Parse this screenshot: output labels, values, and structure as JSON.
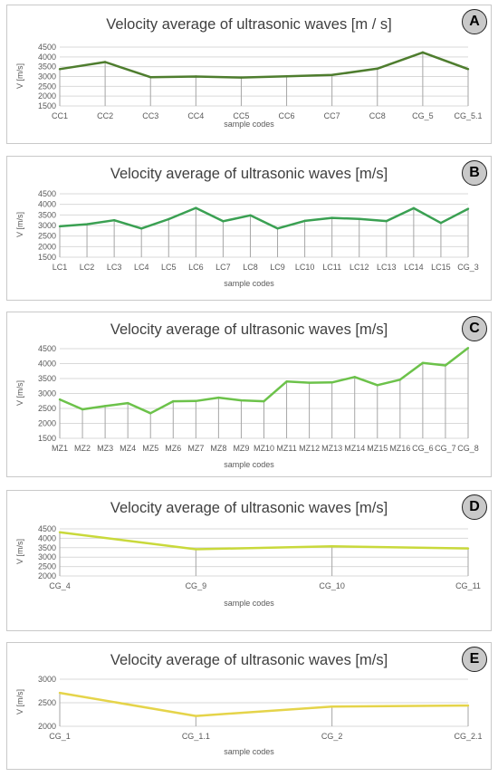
{
  "chart_data": [
    {
      "type": "line",
      "badge": "A",
      "title": "Velocity average of ultrasonic waves [m / s]",
      "xlabel": "sample codes",
      "ylabel": "V [m/s]",
      "categories": [
        "CC1",
        "CC2",
        "CC3",
        "CC4",
        "CC5",
        "CC6",
        "CC7",
        "CC8",
        "CG_5",
        "CG_5.1"
      ],
      "values": [
        3380,
        3740,
        2970,
        3000,
        2950,
        3010,
        3080,
        3400,
        4230,
        3380
      ],
      "yticks": [
        1500,
        2000,
        2500,
        3000,
        3500,
        4000,
        4500
      ],
      "ylim": [
        1500,
        4500
      ],
      "color": "#4e7d2e",
      "grid": true
    },
    {
      "type": "line",
      "badge": "B",
      "title": "Velocity average of ultrasonic waves [m/s]",
      "xlabel": "sample codes",
      "ylabel": "V [m/s]",
      "categories": [
        "LC1",
        "LC2",
        "LC3",
        "LC4",
        "LC5",
        "LC6",
        "LC7",
        "LC8",
        "LC9",
        "LC10",
        "LC11",
        "LC12",
        "LC13",
        "LC14",
        "LC15",
        "CG_3"
      ],
      "values": [
        2960,
        3060,
        3250,
        2860,
        3300,
        3830,
        3200,
        3480,
        2860,
        3220,
        3360,
        3310,
        3210,
        3820,
        3120,
        3790
      ],
      "yticks": [
        1500,
        2000,
        2500,
        3000,
        3500,
        4000,
        4500
      ],
      "ylim": [
        1500,
        4500
      ],
      "color": "#3aa052",
      "grid": true
    },
    {
      "type": "line",
      "badge": "C",
      "title": "Velocity average of ultrasonic waves [m/s]",
      "xlabel": "sample codes",
      "ylabel": "V [m/s]",
      "categories": [
        "MZ1",
        "MZ2",
        "MZ3",
        "MZ4",
        "MZ5",
        "MZ6",
        "MZ7",
        "MZ8",
        "MZ9",
        "MZ10",
        "MZ11",
        "MZ12",
        "MZ13",
        "MZ14",
        "MZ15",
        "MZ16",
        "CG_6",
        "CG_7",
        "CG_8"
      ],
      "values": [
        2800,
        2470,
        2580,
        2680,
        2340,
        2740,
        2750,
        2860,
        2770,
        2740,
        3400,
        3360,
        3370,
        3550,
        3280,
        3460,
        4020,
        3940,
        4520
      ],
      "yticks": [
        1500,
        2000,
        2500,
        3000,
        3500,
        4000,
        4500
      ],
      "ylim": [
        1500,
        4500
      ],
      "color": "#6cc24a",
      "grid": true
    },
    {
      "type": "line",
      "badge": "D",
      "title": "Velocity average of ultrasonic waves [m/s]",
      "xlabel": "sample codes",
      "ylabel": "V [m/s]",
      "categories": [
        "CG_4",
        "CG_9",
        "CG_10",
        "CG_11"
      ],
      "values": [
        4320,
        3420,
        3570,
        3460
      ],
      "yticks": [
        2000,
        2500,
        3000,
        3500,
        4000,
        4500
      ],
      "ylim": [
        2000,
        4500
      ],
      "color": "#c9d93b",
      "grid": true
    },
    {
      "type": "line",
      "badge": "E",
      "title": "Velocity average of ultrasonic waves [m/s]",
      "xlabel": "sample codes",
      "ylabel": "V [m/s]",
      "categories": [
        "CG_1",
        "CG_1.1",
        "CG_2",
        "CG_2.1"
      ],
      "values": [
        2710,
        2220,
        2420,
        2440
      ],
      "yticks": [
        2000,
        2500,
        3000
      ],
      "ylim": [
        2000,
        3000
      ],
      "color": "#e5d44a",
      "grid": true
    }
  ]
}
